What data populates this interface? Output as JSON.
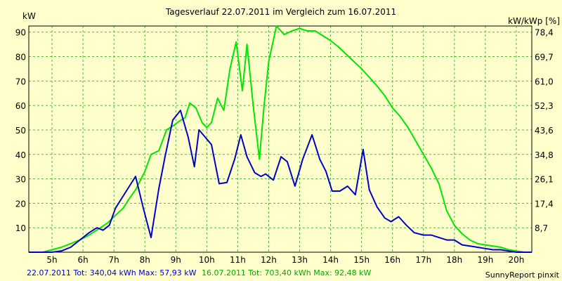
{
  "chart_data": {
    "type": "line",
    "title": "Tagesverlauf 22.07.2011 im Vergleich zum 16.07.2011",
    "ylabel_left": "kW",
    "ylabel_right": "kW/kWp [%]",
    "xlim": [
      4.25,
      20.5
    ],
    "ylim": [
      0,
      92.5
    ],
    "grid": true,
    "x_ticks": [
      5,
      6,
      7,
      8,
      9,
      10,
      11,
      12,
      13,
      14,
      15,
      16,
      17,
      18,
      19,
      20
    ],
    "x_tick_labels": [
      "5h",
      "6h",
      "7h",
      "8h",
      "9h",
      "10h",
      "11h",
      "12h",
      "13h",
      "14h",
      "15h",
      "16h",
      "17h",
      "18h",
      "19h",
      "20h"
    ],
    "y_ticks_left": [
      10,
      20,
      30,
      40,
      50,
      60,
      70,
      80,
      90
    ],
    "y_ticks_right": [
      {
        "value": 10,
        "label": "8,7"
      },
      {
        "value": 20,
        "label": "17,4"
      },
      {
        "value": 30,
        "label": "26,1"
      },
      {
        "value": 40,
        "label": "34,8"
      },
      {
        "value": 50,
        "label": "43,6"
      },
      {
        "value": 60,
        "label": "52,3"
      },
      {
        "value": 70,
        "label": "61,0"
      },
      {
        "value": 80,
        "label": "69,7"
      },
      {
        "value": 90,
        "label": "78,4"
      }
    ],
    "series": [
      {
        "name": "16.07.2011",
        "color": "#00e600",
        "x": [
          4.25,
          4.7,
          5.0,
          5.3,
          5.6,
          5.9,
          6.2,
          6.5,
          6.8,
          7.0,
          7.3,
          7.5,
          7.7,
          8.0,
          8.2,
          8.45,
          8.7,
          8.95,
          9.1,
          9.3,
          9.45,
          9.65,
          9.85,
          10.0,
          10.15,
          10.35,
          10.55,
          10.75,
          10.95,
          11.15,
          11.3,
          11.5,
          11.7,
          11.85,
          12.0,
          12.25,
          12.5,
          12.75,
          13.0,
          13.25,
          13.5,
          13.75,
          14.0,
          14.25,
          14.5,
          14.75,
          15.0,
          15.25,
          15.5,
          15.75,
          16.0,
          16.25,
          16.5,
          16.75,
          17.0,
          17.25,
          17.5,
          17.75,
          18.0,
          18.25,
          18.5,
          18.75,
          19.0,
          19.25,
          19.5,
          19.75,
          20.0,
          20.25,
          20.5
        ],
        "values": [
          0,
          0,
          1,
          2,
          3.5,
          5,
          7,
          9.5,
          12,
          14.5,
          18,
          22,
          25.5,
          33,
          40,
          41.5,
          50,
          52,
          53.5,
          55,
          61,
          59,
          53,
          51,
          53,
          63,
          58,
          75,
          86,
          66,
          85,
          60,
          38,
          60,
          78,
          92.5,
          89,
          90.5,
          91.5,
          90.5,
          90.5,
          88.5,
          86.5,
          84,
          81,
          78,
          75,
          71.5,
          68,
          64,
          59,
          55.5,
          51,
          45.5,
          40,
          34.5,
          28,
          17,
          11,
          7.5,
          5,
          3.5,
          3,
          2.5,
          2,
          1,
          0.5,
          0,
          0
        ]
      },
      {
        "name": "22.07.2011",
        "color": "#0000cc",
        "x": [
          4.25,
          4.7,
          5.0,
          5.3,
          5.6,
          5.9,
          6.2,
          6.45,
          6.65,
          6.85,
          7.05,
          7.2,
          7.45,
          7.7,
          7.95,
          8.2,
          8.45,
          8.65,
          8.9,
          9.15,
          9.4,
          9.6,
          9.75,
          9.95,
          10.15,
          10.4,
          10.65,
          10.9,
          11.1,
          11.3,
          11.55,
          11.75,
          11.9,
          12.15,
          12.4,
          12.6,
          12.85,
          13.1,
          13.4,
          13.65,
          13.85,
          14.05,
          14.3,
          14.55,
          14.8,
          15.05,
          15.25,
          15.5,
          15.75,
          15.95,
          16.2,
          16.45,
          16.7,
          17.0,
          17.25,
          17.5,
          17.75,
          18.0,
          18.25,
          18.5,
          18.75,
          19.0,
          19.25,
          19.5,
          19.75,
          20.0,
          20.2,
          20.5
        ],
        "values": [
          0,
          0,
          0,
          0.5,
          2,
          5,
          8,
          10,
          9,
          11,
          18,
          21,
          26,
          31,
          18,
          6,
          26,
          39,
          54,
          58,
          47,
          35,
          50,
          47,
          44,
          28,
          28.5,
          38,
          48,
          39,
          32.5,
          31,
          32,
          29.5,
          39,
          37,
          27,
          38,
          48,
          38,
          33,
          25,
          25,
          27,
          23.5,
          42,
          25.5,
          18.5,
          14,
          12.5,
          14.5,
          11,
          8,
          7,
          7,
          6,
          5,
          5,
          3,
          2.5,
          2,
          1.5,
          1,
          1,
          0.5,
          0,
          0,
          0
        ]
      }
    ],
    "footer": {
      "blue": "22.07.2011 Tot: 340,04 kWh Max: 57,93 kW",
      "green": "16.07.2011 Tot: 703,40 kWh Max: 92,48 kW",
      "credit": "SunnyReport pinxit"
    }
  }
}
